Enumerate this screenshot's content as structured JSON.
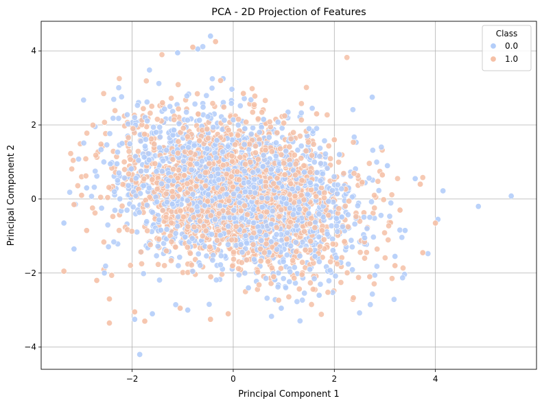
{
  "chart_data": {
    "type": "scatter",
    "title": "PCA - 2D Projection of Features",
    "xlabel": "Principal Component 1",
    "ylabel": "Principal Component 2",
    "xlim": [
      -3.8,
      6.0
    ],
    "ylim": [
      -4.6,
      4.8
    ],
    "xticks": [
      -2,
      0,
      2,
      4
    ],
    "yticks": [
      -4,
      -2,
      0,
      2,
      4
    ],
    "xtick_labels": [
      "−2",
      "0",
      "2",
      "4"
    ],
    "ytick_labels": [
      "−4",
      "−2",
      "0",
      "2",
      "4"
    ],
    "grid": true,
    "legend": {
      "title": "Class",
      "position": "top-right"
    },
    "series": [
      {
        "name": "0.0",
        "color": "#b3cdf9",
        "points": [
          [
            5.5,
            0.08
          ],
          [
            4.85,
            -0.2
          ],
          [
            4.15,
            0.22
          ],
          [
            4.05,
            -0.55
          ],
          [
            3.6,
            0.55
          ],
          [
            3.2,
            -1.55
          ],
          [
            2.75,
            2.75
          ],
          [
            1.7,
            -2.6
          ],
          [
            0.95,
            -2.95
          ],
          [
            -0.45,
            4.4
          ],
          [
            -0.7,
            4.05
          ],
          [
            -1.1,
            3.95
          ],
          [
            -1.85,
            -4.2
          ],
          [
            -1.95,
            -3.25
          ],
          [
            -2.9,
            0.3
          ],
          [
            -3.15,
            -1.35
          ],
          [
            -3.35,
            -0.65
          ],
          [
            -2.2,
            1.5
          ],
          [
            -1.6,
            -3.1
          ],
          [
            -0.2,
            3.25
          ],
          [
            0.3,
            -2.4
          ],
          [
            -0.9,
            -3.0
          ],
          [
            2.1,
            1.2
          ],
          [
            2.6,
            -1.05
          ],
          [
            3.05,
            0.9
          ],
          [
            3.4,
            -0.85
          ],
          [
            -2.55,
            -2.0
          ],
          [
            -2.3,
            0.95
          ],
          [
            1.5,
            1.9
          ],
          [
            0.6,
            2.15
          ]
        ]
      },
      {
        "name": "1.0",
        "color": "#f5c0a6",
        "points": [
          [
            3.75,
            -1.45
          ],
          [
            3.7,
            0.4
          ],
          [
            4.0,
            -0.65
          ],
          [
            2.7,
            -2.1
          ],
          [
            3.2,
            -1.8
          ],
          [
            -0.35,
            4.25
          ],
          [
            -0.8,
            4.1
          ],
          [
            -2.45,
            -3.35
          ],
          [
            -1.75,
            -3.3
          ],
          [
            -3.35,
            -1.95
          ],
          [
            -3.15,
            -0.15
          ],
          [
            -2.7,
            -2.2
          ],
          [
            -0.1,
            -3.1
          ],
          [
            -0.45,
            -3.25
          ],
          [
            1.65,
            2.3
          ],
          [
            -1.4,
            2.6
          ],
          [
            2.2,
            -1.15
          ],
          [
            2.95,
            0.65
          ],
          [
            -2.45,
            -2.7
          ],
          [
            -1.95,
            -3.05
          ],
          [
            -0.25,
            3.2
          ],
          [
            1.0,
            2.05
          ],
          [
            -2.9,
            -0.85
          ],
          [
            0.8,
            -2.1
          ],
          [
            2.55,
            0.45
          ],
          [
            -3.0,
            0.1
          ],
          [
            0.2,
            2.85
          ],
          [
            -1.05,
            -2.95
          ],
          [
            3.3,
            -0.3
          ],
          [
            2.0,
            1.6
          ]
        ]
      }
    ]
  }
}
